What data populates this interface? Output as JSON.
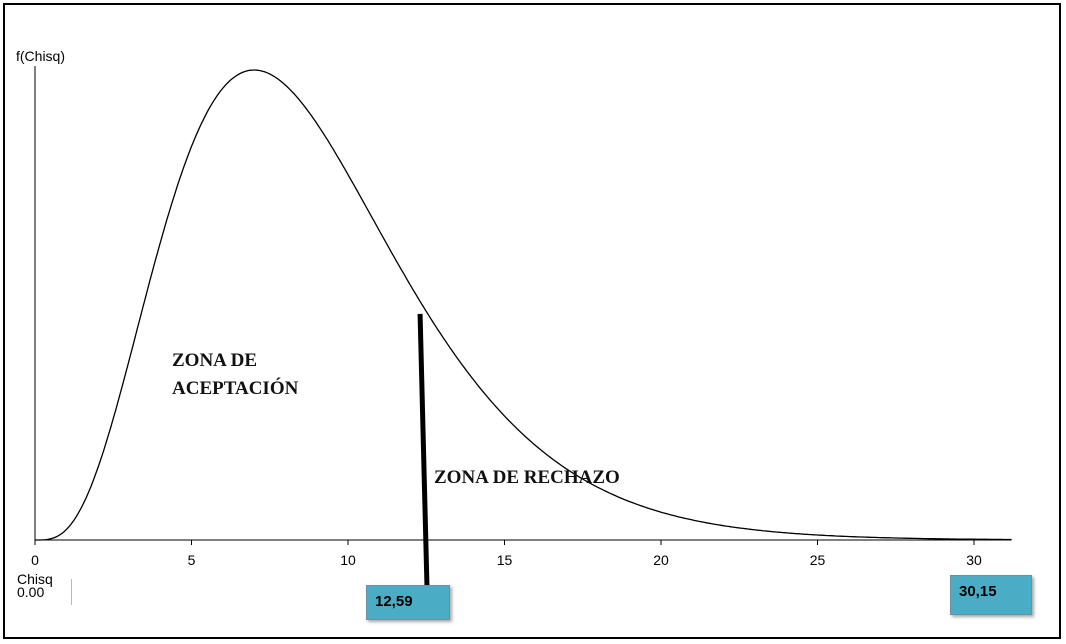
{
  "chart_data": {
    "type": "line",
    "distribution": "chi-square",
    "degrees_of_freedom": 9,
    "ylabel": "f(Chisq)",
    "xlabel": "Chisq",
    "xlim": [
      0,
      31.2
    ],
    "x_ticks": [
      0,
      5,
      10,
      15,
      20,
      25,
      30
    ],
    "x_tick_labels": [
      "0",
      "5",
      "10",
      "15",
      "20",
      "25",
      "30"
    ],
    "x_start_readout": "0.00",
    "critical_value": 12.59,
    "critical_label": "12,59",
    "calculated_value": 30.15,
    "calculated_label": "30,15",
    "zones": [
      {
        "label_line1": "ZONA DE",
        "label_line2": "ACEPTACIÓN"
      },
      {
        "label_line1": "ZONA DE RECHAZO"
      }
    ]
  },
  "colors": {
    "badge_fill": "#4bacc6",
    "curve": "#000000",
    "axis": "#000000"
  }
}
